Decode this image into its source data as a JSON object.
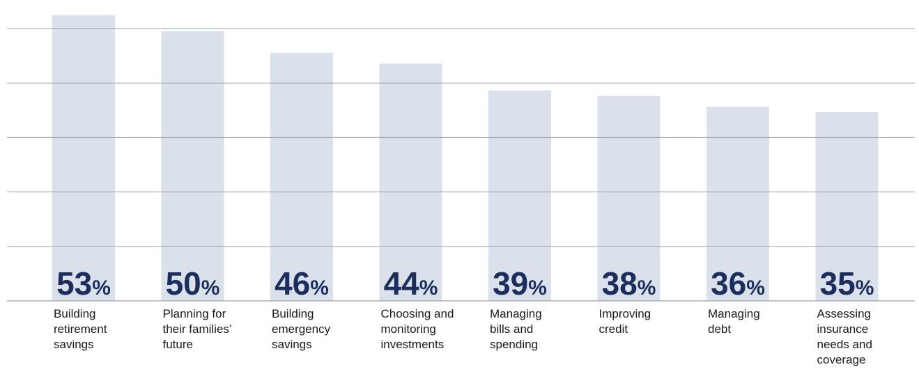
{
  "chart_data": {
    "type": "bar",
    "categories": [
      "Building retirement savings",
      "Planning for their families’ future",
      "Building emergency savings",
      "Choosing and monitoring investments",
      "Managing bills and spending",
      "Improving credit",
      "Managing debt",
      "Assessing insurance needs and coverage"
    ],
    "label_lines": [
      [
        "Building",
        "retirement",
        "savings"
      ],
      [
        "Planning for",
        "their families’",
        "future"
      ],
      [
        "Building",
        "emergency",
        "savings"
      ],
      [
        "Choosing and",
        "monitoring",
        "investments"
      ],
      [
        "Managing",
        "bills and",
        "spending"
      ],
      [
        "Improving",
        "credit"
      ],
      [
        "Managing",
        "debt"
      ],
      [
        "Assessing",
        "insurance",
        "needs and",
        "coverage"
      ]
    ],
    "values": [
      53,
      50,
      46,
      44,
      39,
      38,
      36,
      35
    ],
    "value_labels": [
      "53",
      "50",
      "46",
      "44",
      "39",
      "38",
      "36",
      "35"
    ],
    "value_suffix": "%",
    "ylim": [
      0,
      54.5
    ],
    "gridlines": 6,
    "bar_color": "#dbe1ea",
    "label_color": "#1c2e5e",
    "grid_color": "#9ea0a3"
  }
}
